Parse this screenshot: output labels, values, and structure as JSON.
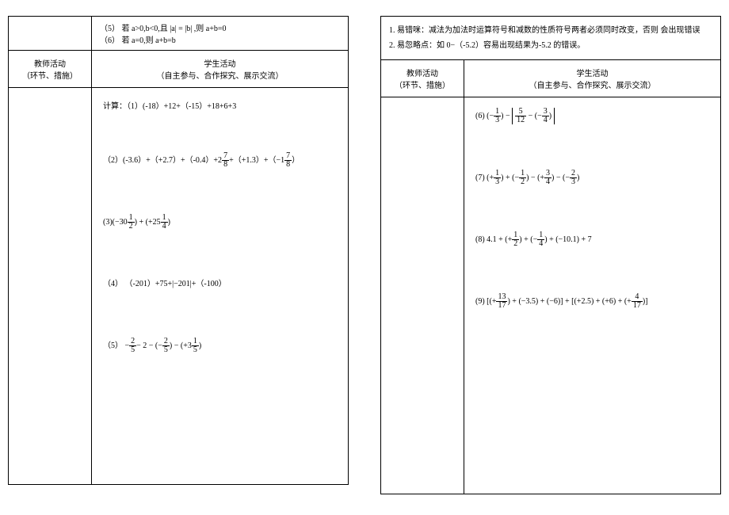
{
  "left": {
    "top_rules": {
      "r5": "（5）  若 a>0,b<0,且 |a| = |b| ,则 a+b=0",
      "r6": "（6） 若 a=0,则 a+b=b"
    },
    "header": {
      "col1_line1": "教师活动",
      "col1_line2": "（环节、措施）",
      "col2_line1": "学生活动",
      "col2_line2": "（自主参与、合作探究、展示交流）"
    },
    "problems": {
      "intro": "计算：",
      "p1": "（1）(-18）+12+（-15）+18+6+3",
      "p2_a": "（2）(-3.6）+（+2.7）+（-0.4）+2",
      "p2_b": "+（+1.3）+（−1",
      "p2_c": "）",
      "p3_a": "(3)(−30",
      "p3_b": ") + (+25",
      "p3_c": ")",
      "p4": "（4） （-201）+75+|−201|+（-100）",
      "p5_a": "（5） −",
      "p5_b": "− 2 − (−",
      "p5_c": ") − (+3",
      "p5_d": ")"
    }
  },
  "right": {
    "notes": {
      "n1": "1.  易错咪：减法为加法时运算符号和减数的性质符号两者必须同时改变，否则       会出现错误",
      "n2": "2.  易忽略点：如 0−（-5.2）容易出现结果为-5.2 的错误。"
    },
    "header": {
      "col1_line1": "教师活动",
      "col1_line2": "（环节、措施）",
      "col2_line1": "学生活动",
      "col2_line2": "（自主参与、合作探究、展示交流）"
    },
    "problems": {
      "p6_a": "(6)  (−",
      "p6_b": ") −",
      "p7_a": "(7)   (+",
      "p7_b": ") + (−",
      "p7_c": ") − (+",
      "p7_d": ") − (−",
      "p7_e": ")",
      "p8_a": "(8)  4.1 + (+",
      "p8_b": ") + (−",
      "p8_c": ") + (−10.1) + 7",
      "p9_a": "(9)   [(+",
      "p9_b": ") + (−3.5) + (−6)] + [(+2.5) + (+6) + (+",
      "p9_c": ")]"
    }
  },
  "fractions": {
    "f7_8": {
      "n": "7",
      "d": "8"
    },
    "f1_2": {
      "n": "1",
      "d": "2"
    },
    "f1_4": {
      "n": "1",
      "d": "4"
    },
    "f2_5": {
      "n": "2",
      "d": "5"
    },
    "f1_5": {
      "n": "1",
      "d": "5"
    },
    "f1_3": {
      "n": "1",
      "d": "3"
    },
    "f5_12": {
      "n": "5",
      "d": "12"
    },
    "f3_4": {
      "n": "3",
      "d": "4"
    },
    "f2_3": {
      "n": "2",
      "d": "3"
    },
    "f13_17": {
      "n": "13",
      "d": "17"
    },
    "f4_17": {
      "n": "4",
      "d": "17"
    }
  }
}
